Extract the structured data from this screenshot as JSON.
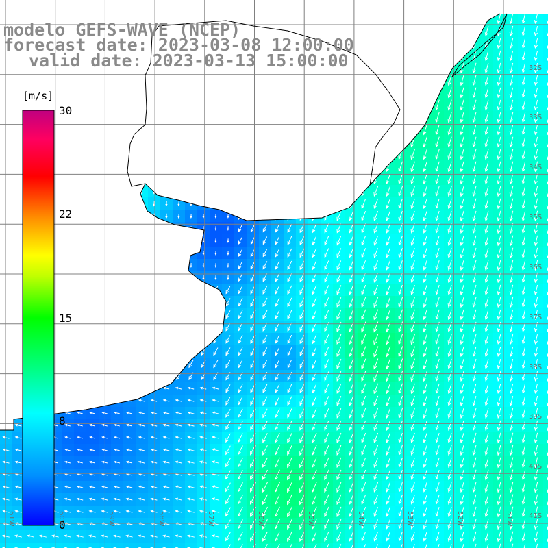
{
  "title": {
    "model": "modelo GEFS-WAVE (NCEP)",
    "forecast": "forecast date: 2023-03-08 12:00:00",
    "valid": "valid date: 2023-03-13 15:00:00"
  },
  "colorbar": {
    "units": "[m/s]",
    "min": 0,
    "max": 30,
    "ticks": [
      "0",
      "8",
      "15",
      "22",
      "30"
    ],
    "tick_values": [
      0,
      8,
      15,
      22,
      30
    ],
    "colors": [
      "#0000ff",
      "#00a0ff",
      "#00ffff",
      "#00ff60",
      "#00ff00",
      "#a0ff00",
      "#ffff00",
      "#ffa000",
      "#ff0000",
      "#ff0060",
      "#c00080"
    ]
  },
  "map": {
    "lon_range": [
      -61,
      -50
    ],
    "lat_range": [
      -41,
      -31
    ],
    "lat_labels": [
      "32S",
      "33S",
      "34S",
      "35S",
      "36S",
      "37S",
      "38S",
      "39S",
      "40S",
      "41S"
    ],
    "lon_labels": [
      "61W",
      "60W",
      "59W",
      "58W",
      "57W",
      "56W",
      "55W",
      "54W",
      "53W",
      "52W",
      "51W"
    ],
    "land_color": "#ffffff",
    "grid_color": "#808080",
    "coast_color": "#000000",
    "arrow_color": "#ffffff"
  }
}
